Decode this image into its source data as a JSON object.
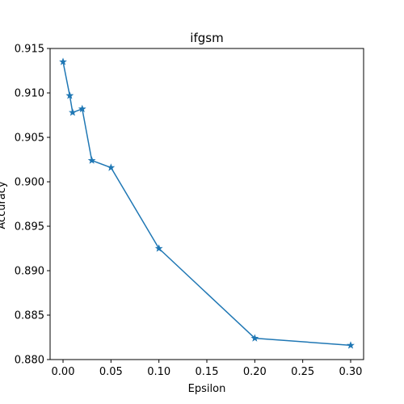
{
  "chart_data": {
    "type": "line",
    "title": "ifgsm",
    "xlabel": "Epsilon",
    "ylabel": "Accuracy",
    "xlim": [
      -0.0135,
      0.3135
    ],
    "ylim": [
      0.88,
      0.915
    ],
    "x_ticks": [
      0.0,
      0.05,
      0.1,
      0.15,
      0.2,
      0.25,
      0.3
    ],
    "x_tick_labels": [
      "0.00",
      "0.05",
      "0.10",
      "0.15",
      "0.20",
      "0.25",
      "0.30"
    ],
    "y_ticks": [
      0.88,
      0.885,
      0.89,
      0.895,
      0.9,
      0.905,
      0.91,
      0.915
    ],
    "y_tick_labels": [
      "0.880",
      "0.885",
      "0.890",
      "0.895",
      "0.900",
      "0.905",
      "0.910",
      "0.915"
    ],
    "grid": false,
    "marker": "star",
    "line_color": "#1f77b4",
    "series": [
      {
        "x": [
          0.0,
          0.007,
          0.01,
          0.02,
          0.03,
          0.05,
          0.1,
          0.2,
          0.3
        ],
        "values": [
          0.9135,
          0.9097,
          0.9078,
          0.9082,
          0.9024,
          0.9016,
          0.8925,
          0.8824,
          0.8816
        ]
      }
    ]
  }
}
